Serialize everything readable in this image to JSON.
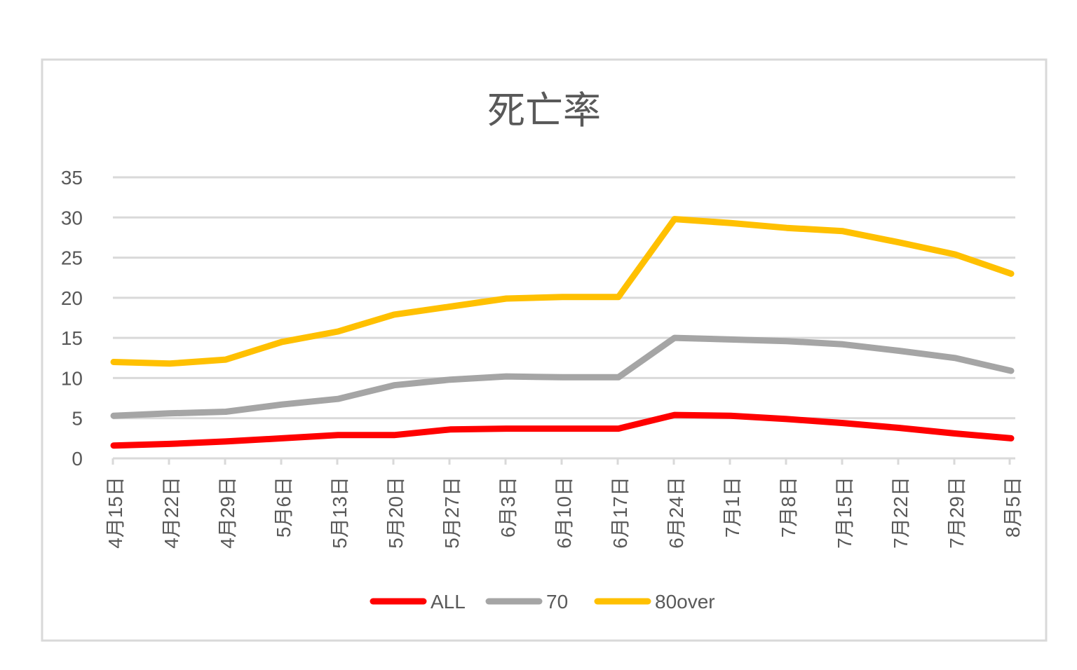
{
  "chart_data": {
    "type": "line",
    "title": "死亡率",
    "xlabel": "",
    "ylabel": "",
    "ylim": [
      0,
      35
    ],
    "yticks": [
      0,
      5,
      10,
      15,
      20,
      25,
      30,
      35
    ],
    "grid": true,
    "legend_position": "bottom",
    "categories": [
      "4月15日",
      "4月22日",
      "4月29日",
      "5月6日",
      "5月13日",
      "5月20日",
      "5月27日",
      "6月3日",
      "6月10日",
      "6月17日",
      "6月24日",
      "7月1日",
      "7月8日",
      "7月15日",
      "7月22日",
      "7月29日",
      "8月5日"
    ],
    "series": [
      {
        "name": "ALL",
        "color": "#ff0000",
        "values": [
          1.6,
          1.8,
          2.1,
          2.5,
          2.9,
          2.9,
          3.6,
          3.7,
          3.7,
          3.7,
          5.4,
          5.3,
          4.9,
          4.4,
          3.8,
          3.1,
          2.5
        ]
      },
      {
        "name": "70",
        "color": "#a5a5a5",
        "values": [
          5.3,
          5.6,
          5.8,
          6.7,
          7.4,
          9.1,
          9.8,
          10.2,
          10.1,
          10.1,
          15.0,
          14.8,
          14.6,
          14.2,
          13.4,
          12.5,
          10.9
        ]
      },
      {
        "name": "80over",
        "color": "#ffc000",
        "values": [
          12.0,
          11.8,
          12.3,
          14.5,
          15.8,
          17.9,
          18.9,
          19.9,
          20.1,
          20.1,
          29.8,
          29.3,
          28.7,
          28.3,
          26.9,
          25.4,
          23.0
        ]
      }
    ]
  }
}
